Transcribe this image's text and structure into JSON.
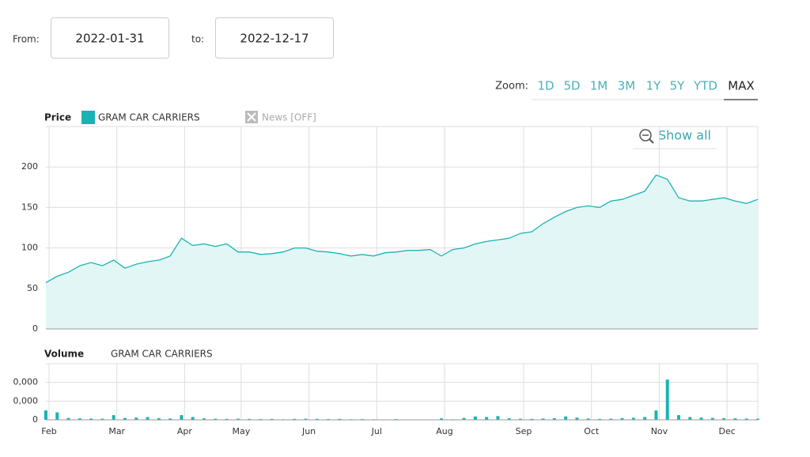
{
  "controls": {
    "from_label": "From:",
    "from": "2022-01-31",
    "to_label": "to:",
    "to": "2022-12-17",
    "zoom_label": "Zoom:",
    "zoom": [
      "1D",
      "5D",
      "1M",
      "3M",
      "1Y",
      "5Y",
      "YTD",
      "MAX"
    ],
    "active_zoom": 7,
    "show_all": "Show all",
    "news": "News [OFF]"
  },
  "chart_data": [
    {
      "type": "area",
      "title": "Price",
      "categories": [
        "Feb",
        null,
        null,
        null,
        null,
        null,
        "Mar",
        null,
        null,
        null,
        null,
        null,
        "Apr",
        null,
        null,
        null,
        null,
        "May",
        null,
        null,
        null,
        null,
        null,
        "Jun",
        null,
        null,
        null,
        null,
        null,
        "Jul",
        null,
        null,
        null,
        null,
        null,
        "Aug",
        null,
        null,
        null,
        null,
        null,
        null,
        "Sep",
        null,
        null,
        null,
        null,
        null,
        "Oct",
        null,
        null,
        null,
        null,
        null,
        "Nov",
        null,
        null,
        null,
        null,
        null,
        "Dec",
        null,
        null,
        null
      ],
      "series": [
        {
          "name": "GRAM CAR CARRIERS",
          "color": "#1ab3b3",
          "values": [
            57,
            65,
            70,
            78,
            82,
            78,
            85,
            75,
            80,
            83,
            85,
            90,
            112,
            103,
            105,
            102,
            105,
            95,
            95,
            92,
            93,
            95,
            100,
            100,
            96,
            95,
            93,
            90,
            92,
            90,
            94,
            95,
            97,
            97,
            98,
            90,
            98,
            100,
            105,
            108,
            110,
            112,
            118,
            120,
            130,
            138,
            145,
            150,
            152,
            150,
            158,
            160,
            165,
            170,
            190,
            185,
            162,
            158,
            158,
            160,
            162,
            158,
            155,
            160
          ]
        }
      ],
      "ylim": [
        0,
        250
      ],
      "yticks": [
        0,
        50,
        100,
        150,
        200
      ],
      "grid": true
    },
    {
      "type": "bar",
      "title": "Volume",
      "categories": [
        "Feb",
        null,
        null,
        null,
        null,
        null,
        "Mar",
        null,
        null,
        null,
        null,
        null,
        "Apr",
        null,
        null,
        null,
        null,
        "May",
        null,
        null,
        null,
        null,
        null,
        "Jun",
        null,
        null,
        null,
        null,
        null,
        "Jul",
        null,
        null,
        null,
        null,
        null,
        "Aug",
        null,
        null,
        null,
        null,
        null,
        null,
        "Sep",
        null,
        null,
        null,
        null,
        null,
        "Oct",
        null,
        null,
        null,
        null,
        null,
        "Nov",
        null,
        null,
        null,
        null,
        null,
        "Dec",
        null,
        null,
        null
      ],
      "series": [
        {
          "name": "GRAM CAR CARRIERS",
          "color": "#1ab3b3",
          "values": [
            5000000,
            4000000,
            1000000,
            800000,
            700000,
            600000,
            2500000,
            1000000,
            1200000,
            1500000,
            900000,
            700000,
            2500000,
            1500000,
            800000,
            600000,
            500000,
            600000,
            500000,
            400000,
            500000,
            300000,
            500000,
            600000,
            500000,
            400000,
            500000,
            300000,
            400000,
            300000,
            200000,
            400000,
            100000,
            100000,
            100000,
            800000,
            300000,
            1000000,
            1800000,
            1500000,
            2000000,
            800000,
            600000,
            500000,
            700000,
            900000,
            1800000,
            1200000,
            700000,
            500000,
            600000,
            900000,
            1100000,
            1500000,
            5000000,
            21500000,
            2500000,
            1500000,
            1200000,
            1000000,
            900000,
            800000,
            700000,
            600000
          ]
        }
      ],
      "ylim": [
        0,
        30000000
      ],
      "yticks": [
        0,
        {
          "value": 10000000,
          "label": "0,000"
        },
        {
          "value": 20000000,
          "label": "0,000"
        }
      ],
      "grid": true
    }
  ]
}
